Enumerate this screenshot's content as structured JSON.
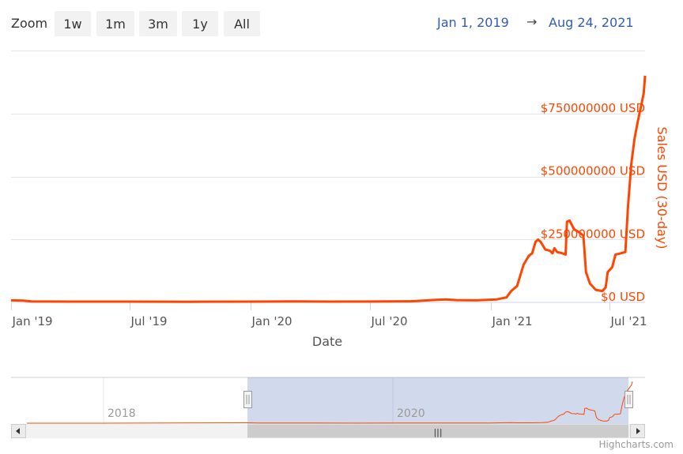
{
  "range_selector": {
    "zoom_label": "Zoom",
    "buttons": [
      "1w",
      "1m",
      "3m",
      "1y",
      "All"
    ],
    "from": "Jan 1, 2019",
    "arrow": "→",
    "to": "Aug 24, 2021"
  },
  "chart_data": {
    "type": "line",
    "title": "",
    "xlabel": "Date",
    "ylabel": "Sales USD (30-day)",
    "xlim": [
      "2019-01-01",
      "2021-08-24"
    ],
    "ylim": [
      0,
      1000000000
    ],
    "grid": true,
    "x_ticks": [
      {
        "label": "Jan '19",
        "date": "2019-01-01"
      },
      {
        "label": "Jul '19",
        "date": "2019-07-01"
      },
      {
        "label": "Jan '20",
        "date": "2020-01-01"
      },
      {
        "label": "Jul '20",
        "date": "2020-07-01"
      },
      {
        "label": "Jan '21",
        "date": "2021-01-01"
      },
      {
        "label": "Jul '21",
        "date": "2021-07-01"
      }
    ],
    "y_ticks": [
      {
        "label": "$0 USD",
        "value": 0
      },
      {
        "label": "$250000000 USD",
        "value": 250000000
      },
      {
        "label": "$500000000 USD",
        "value": 500000000
      },
      {
        "label": "$750000000 USD",
        "value": 750000000
      }
    ],
    "series": [
      {
        "name": "Sales USD (30-day)",
        "color": "#ff4500",
        "points": [
          [
            "2019-01-01",
            8000000
          ],
          [
            "2019-01-20",
            7000000
          ],
          [
            "2019-02-01",
            4000000
          ],
          [
            "2019-04-01",
            3000000
          ],
          [
            "2019-07-01",
            3000000
          ],
          [
            "2019-10-01",
            2500000
          ],
          [
            "2020-01-01",
            3000000
          ],
          [
            "2020-03-01",
            4000000
          ],
          [
            "2020-05-01",
            3000000
          ],
          [
            "2020-07-01",
            3500000
          ],
          [
            "2020-09-01",
            4500000
          ],
          [
            "2020-10-10",
            10000000
          ],
          [
            "2020-10-25",
            12000000
          ],
          [
            "2020-11-10",
            9000000
          ],
          [
            "2020-12-10",
            8000000
          ],
          [
            "2021-01-10",
            12000000
          ],
          [
            "2021-01-25",
            20000000
          ],
          [
            "2021-02-01",
            45000000
          ],
          [
            "2021-02-10",
            65000000
          ],
          [
            "2021-02-20",
            150000000
          ],
          [
            "2021-02-28",
            185000000
          ],
          [
            "2021-03-05",
            195000000
          ],
          [
            "2021-03-10",
            240000000
          ],
          [
            "2021-03-14",
            250000000
          ],
          [
            "2021-03-18",
            240000000
          ],
          [
            "2021-03-25",
            210000000
          ],
          [
            "2021-04-01",
            205000000
          ],
          [
            "2021-04-05",
            195000000
          ],
          [
            "2021-04-08",
            215000000
          ],
          [
            "2021-04-12",
            200000000
          ],
          [
            "2021-04-20",
            195000000
          ],
          [
            "2021-04-25",
            190000000
          ],
          [
            "2021-04-27",
            320000000
          ],
          [
            "2021-05-01",
            325000000
          ],
          [
            "2021-05-08",
            290000000
          ],
          [
            "2021-05-15",
            280000000
          ],
          [
            "2021-05-22",
            265000000
          ],
          [
            "2021-05-26",
            120000000
          ],
          [
            "2021-06-01",
            75000000
          ],
          [
            "2021-06-10",
            50000000
          ],
          [
            "2021-06-20",
            45000000
          ],
          [
            "2021-06-25",
            60000000
          ],
          [
            "2021-06-28",
            120000000
          ],
          [
            "2021-07-05",
            140000000
          ],
          [
            "2021-07-10",
            190000000
          ],
          [
            "2021-07-18",
            195000000
          ],
          [
            "2021-07-25",
            200000000
          ],
          [
            "2021-07-29",
            380000000
          ],
          [
            "2021-08-03",
            550000000
          ],
          [
            "2021-08-08",
            650000000
          ],
          [
            "2021-08-13",
            720000000
          ],
          [
            "2021-08-18",
            780000000
          ],
          [
            "2021-08-22",
            830000000
          ],
          [
            "2021-08-24",
            900000000
          ]
        ]
      }
    ],
    "navigator": {
      "labels": [
        "2018",
        "2020"
      ],
      "handle_glyph": "|||"
    }
  },
  "credits": "Highcharts.com"
}
